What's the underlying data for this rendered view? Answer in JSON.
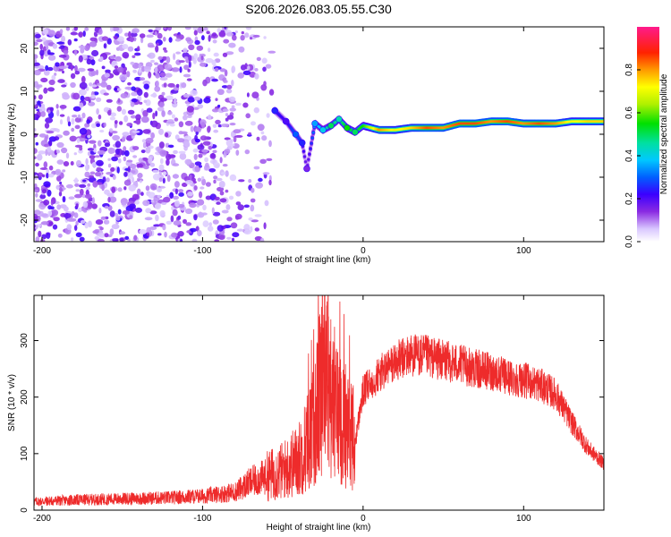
{
  "title": "S206.2026.083.05.55.C30",
  "chart_data": [
    {
      "type": "heatmap",
      "title": "S206.2026.083.05.55.C30",
      "xlabel": "Height of straight line (km)",
      "ylabel": "Frequency (Hz)",
      "xlim": [
        -205,
        150
      ],
      "ylim": [
        -25,
        25
      ],
      "x_ticks": [
        -200,
        -100,
        0,
        100
      ],
      "x_tick_labels": [
        "-200",
        "-100",
        "0",
        "100"
      ],
      "y_ticks": [
        20,
        10,
        0,
        -10,
        -20
      ],
      "y_tick_labels": [
        "20",
        "10",
        "0",
        "-10",
        "-20"
      ],
      "colorbar": {
        "label": "Normalized spectral amplitude",
        "range": [
          0,
          1
        ],
        "ticks": [
          0.0,
          0.2,
          0.4,
          0.6,
          0.8
        ],
        "tick_labels": [
          "0.0",
          "0.2",
          "0.4",
          "0.6",
          "0.8"
        ],
        "colormap": "rainbow (white, purple, blue, cyan, green, yellow, orange, red, pink)"
      },
      "noise_region_km": [
        -205,
        -55
      ],
      "trace_points": [
        {
          "x": -55,
          "y": 5.5,
          "amp": 0.25
        },
        {
          "x": -48,
          "y": 3,
          "amp": 0.2
        },
        {
          "x": -42,
          "y": 0,
          "amp": 0.3
        },
        {
          "x": -38,
          "y": -2,
          "amp": 0.25
        },
        {
          "x": -35,
          "y": -8,
          "amp": 0.15
        },
        {
          "x": -30,
          "y": 2.5,
          "amp": 0.35
        },
        {
          "x": -25,
          "y": 1,
          "amp": 0.4
        },
        {
          "x": -20,
          "y": 2,
          "amp": 0.5
        },
        {
          "x": -15,
          "y": 3.5,
          "amp": 0.45
        },
        {
          "x": -10,
          "y": 1.5,
          "amp": 0.55
        },
        {
          "x": -5,
          "y": 0.5,
          "amp": 0.5
        },
        {
          "x": 0,
          "y": 2,
          "amp": 0.55
        },
        {
          "x": 10,
          "y": 1,
          "amp": 0.8
        },
        {
          "x": 20,
          "y": 1,
          "amp": 0.7
        },
        {
          "x": 30,
          "y": 1.5,
          "amp": 0.75
        },
        {
          "x": 40,
          "y": 1.5,
          "amp": 0.85
        },
        {
          "x": 50,
          "y": 1.5,
          "amp": 0.8
        },
        {
          "x": 60,
          "y": 2.5,
          "amp": 0.85
        },
        {
          "x": 70,
          "y": 2.5,
          "amp": 0.85
        },
        {
          "x": 80,
          "y": 3,
          "amp": 0.8
        },
        {
          "x": 90,
          "y": 3,
          "amp": 0.85
        },
        {
          "x": 100,
          "y": 2.5,
          "amp": 0.8
        },
        {
          "x": 110,
          "y": 2.5,
          "amp": 0.85
        },
        {
          "x": 120,
          "y": 2.5,
          "amp": 0.8
        },
        {
          "x": 130,
          "y": 3,
          "amp": 0.7
        },
        {
          "x": 140,
          "y": 3,
          "amp": 0.75
        },
        {
          "x": 150,
          "y": 3,
          "amp": 0.75
        }
      ]
    },
    {
      "type": "line",
      "xlabel": "Height of straight line (km)",
      "ylabel": "SNR (10 * v/v)",
      "xlim": [
        -205,
        150
      ],
      "ylim": [
        0,
        380
      ],
      "x_ticks": [
        -200,
        -100,
        0,
        100
      ],
      "x_tick_labels": [
        "-200",
        "-100",
        "0",
        "100"
      ],
      "y_ticks": [
        0,
        100,
        200,
        300
      ],
      "y_tick_labels": [
        "0",
        "100",
        "200",
        "300"
      ],
      "color": "#ee2b2b",
      "series": [
        {
          "name": "SNR",
          "x": [
            -205,
            -180,
            -150,
            -120,
            -100,
            -90,
            -80,
            -70,
            -60,
            -50,
            -40,
            -30,
            -25,
            -20,
            -15,
            -10,
            -5,
            0,
            10,
            20,
            30,
            40,
            50,
            60,
            70,
            80,
            90,
            100,
            110,
            120,
            130,
            140,
            150
          ],
          "values": [
            15,
            18,
            20,
            22,
            25,
            28,
            32,
            50,
            60,
            70,
            90,
            150,
            250,
            200,
            170,
            150,
            120,
            210,
            240,
            262,
            275,
            272,
            265,
            258,
            250,
            245,
            235,
            230,
            222,
            205,
            155,
            110,
            82
          ]
        }
      ]
    }
  ]
}
